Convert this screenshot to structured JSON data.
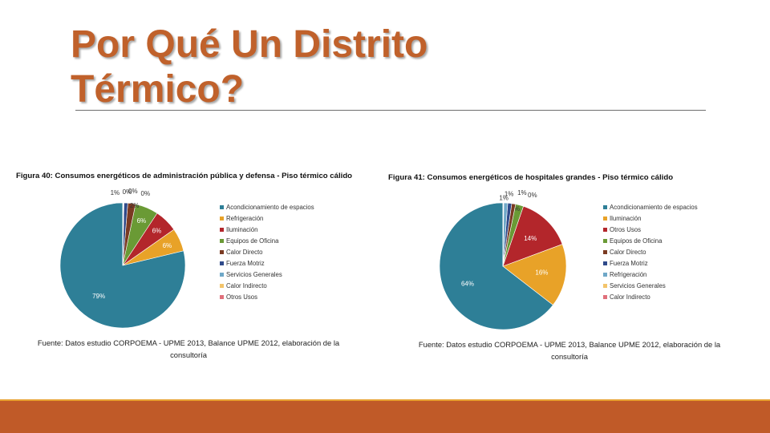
{
  "slide": {
    "title_line1": "Por Qué Un Distrito",
    "title_line2": "Térmico?",
    "title_color": "#c0612b"
  },
  "chart_data": [
    {
      "type": "pie",
      "title": "Figura 40: Consumos energéticos de administración pública y defensa - Piso térmico cálido",
      "source": [
        "Fuente: Datos estudio CORPOEMA - UPME 2013, Balance UPME 2012, elaboración de la",
        "consultoría"
      ],
      "legend_position": "right",
      "slices": [
        {
          "name": "Acondicionamiento de espacios",
          "value": 79,
          "label": "79%",
          "color": "#2e7f97"
        },
        {
          "name": "Refrigeración",
          "value": 6,
          "label": "6%",
          "color": "#e8a228"
        },
        {
          "name": "Iluminación",
          "value": 6,
          "label": "6%",
          "color": "#b3262b"
        },
        {
          "name": "Equipos de Oficina",
          "value": 6,
          "label": "6%",
          "color": "#6a9a35"
        },
        {
          "name": "Calor Directo",
          "value": 2,
          "label": "2%",
          "color": "#7a3a22"
        },
        {
          "name": "Fuerza Motriz",
          "value": 1,
          "label": "1%",
          "color": "#2f4a8a"
        },
        {
          "name": "Servicios Generales",
          "value": 0.1,
          "label": "0%",
          "color": "#6fa8c8"
        },
        {
          "name": "Calor Indirecto",
          "value": 0.1,
          "label": "0%",
          "color": "#f3c46b"
        },
        {
          "name": "Otros Usos",
          "value": 0.1,
          "label": "0%",
          "color": "#e0707b"
        }
      ]
    },
    {
      "type": "pie",
      "title": "Figura 41: Consumos energéticos de hospitales grandes - Piso térmico cálido",
      "source": [
        "Fuente: Datos estudio CORPOEMA - UPME 2013, Balance UPME 2012, elaboración de la",
        "consultoría"
      ],
      "legend_position": "right",
      "slices": [
        {
          "name": "Acondicionamiento de espacios",
          "value": 64,
          "label": "64%",
          "color": "#2e7f97"
        },
        {
          "name": "Iluminación",
          "value": 16,
          "label": "16%",
          "color": "#e8a228"
        },
        {
          "name": "Otros Usos",
          "value": 14,
          "label": "14%",
          "color": "#b3262b"
        },
        {
          "name": "Equipos de Oficina",
          "value": 2,
          "label": "2%",
          "color": "#6a9a35"
        },
        {
          "name": "Calor Directo",
          "value": 1,
          "label": "1%",
          "color": "#7a3a22"
        },
        {
          "name": "Fuerza Motriz",
          "value": 1,
          "label": "1%",
          "color": "#2f4a8a"
        },
        {
          "name": "Refrigeración",
          "value": 1,
          "label": "1%",
          "color": "#6fa8c8"
        },
        {
          "name": "Servicios Generales",
          "value": 0.1,
          "label": "0%",
          "color": "#f3c46b"
        },
        {
          "name": "Calor Indirecto",
          "value": 0.1,
          "label": "",
          "color": "#e0707b"
        }
      ]
    }
  ]
}
